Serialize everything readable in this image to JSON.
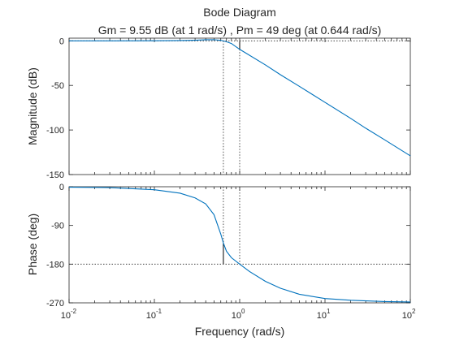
{
  "chart_data": {
    "type": "line",
    "title": "Bode Diagram",
    "subtitle": "Gm = 9.55 dB (at 1 rad/s) ,  Pm = 49 deg (at 0.644 rad/s)",
    "xlabel": "Frequency  (rad/s)",
    "x_scale": "log",
    "xlim": [
      0.01,
      100
    ],
    "x_ticks": [
      {
        "base": "10",
        "exp": "-2"
      },
      {
        "base": "10",
        "exp": "-1"
      },
      {
        "base": "10",
        "exp": "0"
      },
      {
        "base": "10",
        "exp": "1"
      },
      {
        "base": "10",
        "exp": "2"
      }
    ],
    "grid": false,
    "line_color": "#0072BD",
    "axes_color": "#262626",
    "gain_margin": {
      "value_db": 9.55,
      "frequency": 1
    },
    "phase_margin": {
      "value_deg": 49,
      "frequency": 0.644
    },
    "panels": [
      {
        "name": "magnitude",
        "ylabel": "Magnitude (dB)",
        "ylim": [
          -150,
          3
        ],
        "y_ticks": [
          "0",
          "-50",
          "-100",
          "-150"
        ],
        "y_tick_values": [
          0,
          -50,
          -100,
          -150
        ],
        "series": {
          "x": [
            0.01,
            0.03,
            0.1,
            0.2,
            0.3,
            0.4,
            0.5,
            0.6,
            0.7,
            0.8,
            1,
            2,
            3,
            5,
            10,
            20,
            30,
            50,
            100
          ],
          "y": [
            0,
            0,
            0.1,
            0.3,
            0.7,
            1.2,
            1.3,
            0.6,
            -1,
            -3,
            -9.55,
            -27,
            -38,
            -51,
            -69,
            -87,
            -98,
            -111,
            -129
          ]
        }
      },
      {
        "name": "phase",
        "ylabel": "Phase (deg)",
        "ylim": [
          -270,
          0
        ],
        "y_ticks": [
          "0",
          "-90",
          "-180",
          "-270"
        ],
        "y_tick_values": [
          0,
          -90,
          -180,
          -270
        ],
        "series": {
          "x": [
            0.01,
            0.03,
            0.1,
            0.2,
            0.3,
            0.4,
            0.5,
            0.6,
            0.644,
            0.7,
            0.8,
            1,
            1.3,
            2,
            3,
            5,
            10,
            20,
            50,
            100
          ],
          "y": [
            -1,
            -2,
            -7,
            -15,
            -26,
            -40,
            -65,
            -110,
            -131,
            -150,
            -165,
            -180,
            -197,
            -220,
            -236,
            -250,
            -260,
            -264,
            -267,
            -268
          ]
        }
      }
    ]
  }
}
